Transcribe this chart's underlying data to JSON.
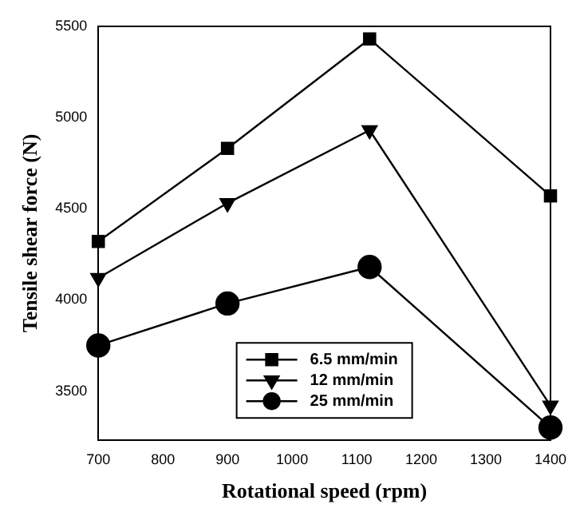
{
  "chart_data": {
    "type": "line",
    "xlabel": "Rotational speed (rpm)",
    "ylabel": "Tensile shear force (N)",
    "x": [
      700,
      900,
      1120,
      1400
    ],
    "xlim": [
      700,
      1400
    ],
    "xticks": [
      700,
      800,
      900,
      1000,
      1100,
      1200,
      1300,
      1400
    ],
    "ylim": [
      3230,
      5500
    ],
    "yticks": [
      3500,
      4000,
      4500,
      5000,
      5500
    ],
    "grid": false,
    "legend": "bottom",
    "line_style": "solid",
    "series": [
      {
        "name": "6.5 mm/min",
        "color": "#000000",
        "marker": "square",
        "values": [
          4320,
          4830,
          5430,
          4570
        ]
      },
      {
        "name": "12 mm/min",
        "color": "#000000",
        "marker": "triangle",
        "values": [
          4120,
          4530,
          4930,
          3420
        ]
      },
      {
        "name": "25 mm/min",
        "color": "#000000",
        "marker": "circle",
        "values": [
          3750,
          3980,
          4180,
          3300
        ]
      }
    ]
  }
}
